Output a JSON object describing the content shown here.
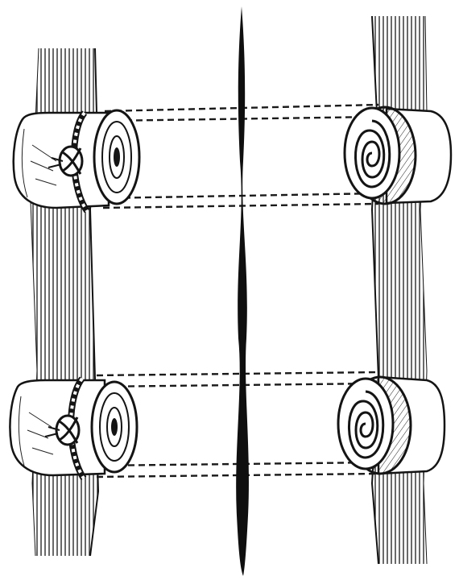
{
  "image": {
    "kind": "engraving",
    "ink_color": "#141414",
    "paper_color": "#ffffff",
    "parts": [
      "left-limb-left",
      "right-limb-right",
      "central-needle",
      "upper-left-quill-with-knot",
      "lower-left-quill-with-knot",
      "upper-right-rolled-quill",
      "lower-right-rolled-quill",
      "dashed-suture-lines"
    ]
  }
}
